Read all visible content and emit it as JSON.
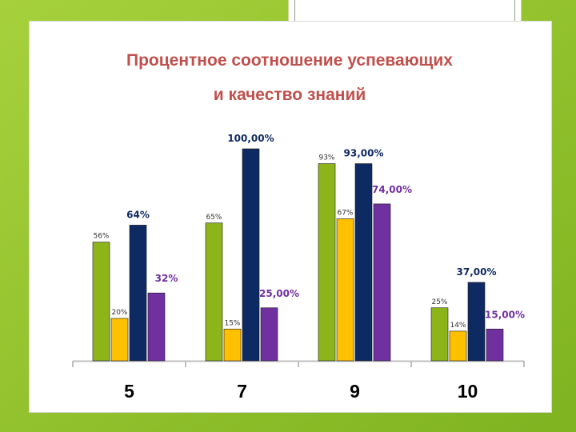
{
  "chart_data": {
    "type": "bar",
    "title": "Процентное соотношение успевающих",
    "subtitle": "и качество знаний",
    "categories": [
      "5",
      "7",
      "9",
      "10"
    ],
    "xlabel": "",
    "ylabel": "",
    "ylim": [
      0,
      100
    ],
    "grid": false,
    "legend": "none",
    "series": [
      {
        "color": "#8db51a",
        "values": [
          56,
          65,
          93,
          25
        ],
        "labels": [
          "56%",
          "65%",
          "93%",
          "25%"
        ]
      },
      {
        "color": "#ffc000",
        "values": [
          20,
          15,
          67,
          14
        ],
        "labels": [
          "20%",
          "15%",
          "67%",
          "14%"
        ]
      },
      {
        "color": "#0e2a63",
        "values": [
          64,
          100,
          93,
          37
        ],
        "labels": [
          "64%",
          "100,00%",
          "93,00%",
          "37,00%"
        ]
      },
      {
        "color": "#7030a0",
        "values": [
          32,
          25,
          74,
          15
        ],
        "labels": [
          "32%",
          "25,00%",
          "74,00%",
          "15,00%"
        ]
      }
    ]
  }
}
